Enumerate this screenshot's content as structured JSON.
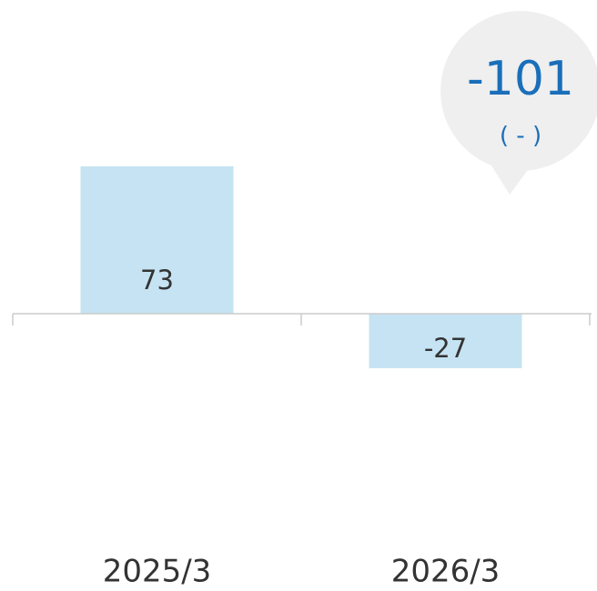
{
  "chart_data": {
    "type": "bar",
    "categories": [
      "2025/3",
      "2026/3"
    ],
    "values": [
      73,
      -27
    ],
    "color": "#c5e3f2",
    "annotation": {
      "value": -101,
      "note": "( - )"
    }
  }
}
